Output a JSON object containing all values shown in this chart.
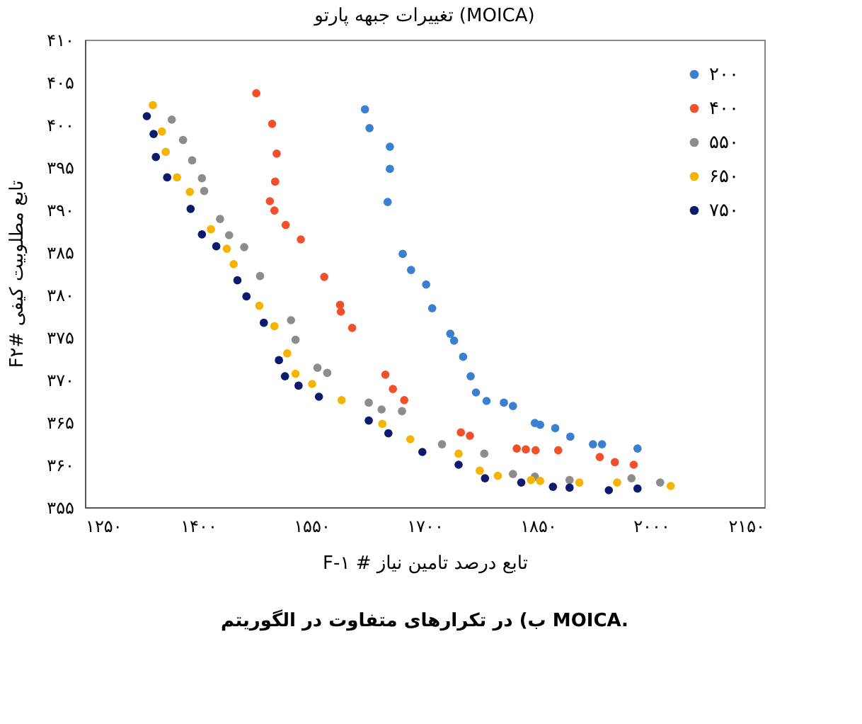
{
  "chart_data": {
    "type": "scatter",
    "title": "تغییرات جبهه پارتو (MOICA)",
    "xlabel": "F-۱ # تابع درصد تامین نیاز",
    "ylabel": "F۲# تابع مطلوبیت کیفی",
    "annotations": [
      "ب) در تکرارهای متفاوت در الگوریتم MOICA."
    ],
    "marker": "circle",
    "legend": "top right",
    "grid": false,
    "xlim": [
      1250,
      2150
    ],
    "ylim": [
      355,
      410
    ],
    "xticks": [
      {
        "value": 1250,
        "label": "۱۲۵۰"
      },
      {
        "value": 1400,
        "label": "۱۴۰۰"
      },
      {
        "value": 1550,
        "label": "۱۵۵۰"
      },
      {
        "value": 1700,
        "label": "۱۷۰۰"
      },
      {
        "value": 1850,
        "label": "۱۸۵۰"
      },
      {
        "value": 2000,
        "label": "۲۰۰۰"
      },
      {
        "value": 2150,
        "label": "۲۱۵۰"
      }
    ],
    "yticks": [
      {
        "value": 355,
        "label": "۳۵۵"
      },
      {
        "value": 360,
        "label": "۳۶۰"
      },
      {
        "value": 365,
        "label": "۳۶۵"
      },
      {
        "value": 370,
        "label": "۳۷۰"
      },
      {
        "value": 375,
        "label": "۳۷۵"
      },
      {
        "value": 380,
        "label": "۳۸۰"
      },
      {
        "value": 385,
        "label": "۳۸۵"
      },
      {
        "value": 390,
        "label": "۳۹۰"
      },
      {
        "value": 395,
        "label": "۳۹۵"
      },
      {
        "value": 400,
        "label": "۴۰۰"
      },
      {
        "value": 405,
        "label": "۴۰۵"
      },
      {
        "value": 410,
        "label": "۴۱۰"
      }
    ],
    "series": [
      {
        "name": "۲۰۰",
        "color": "#3a7fd0",
        "x": [
          1621,
          1627,
          1654,
          1654,
          1651,
          1671,
          1682,
          1702,
          1710,
          1734,
          1739,
          1751,
          1761,
          1768,
          1782,
          1805,
          1817,
          1846,
          1853,
          1873,
          1893,
          1923,
          1935,
          1982
        ],
        "values": [
          401.8,
          399.6,
          397.4,
          394.8,
          390.9,
          384.8,
          382.9,
          381.2,
          378.4,
          375.4,
          374.6,
          372.7,
          370.4,
          368.5,
          367.5,
          367.3,
          366.9,
          364.9,
          364.7,
          364.3,
          363.3,
          362.4,
          362.4,
          361.9
        ]
      },
      {
        "name": "۴۰۰",
        "color": "#f0502a",
        "x": [
          1477,
          1498,
          1504,
          1502,
          1495,
          1501,
          1516,
          1536,
          1567,
          1588,
          1589,
          1604,
          1648,
          1658,
          1673,
          1748,
          1760,
          1822,
          1834,
          1847,
          1877,
          1932,
          1952,
          1977
        ],
        "values": [
          403.7,
          400.1,
          396.6,
          393.3,
          391.0,
          389.9,
          388.2,
          386.5,
          382.1,
          378.8,
          378.0,
          376.1,
          370.6,
          368.9,
          367.6,
          363.8,
          363.4,
          361.9,
          361.8,
          361.7,
          361.7,
          360.9,
          360.3,
          360.0
        ]
      },
      {
        "name": "۵۵۰",
        "color": "#8c8c8c",
        "x": [
          1365,
          1380,
          1392,
          1405,
          1408,
          1429,
          1441,
          1461,
          1482,
          1523,
          1529,
          1558,
          1571,
          1626,
          1643,
          1670,
          1723,
          1779,
          1817,
          1846,
          1892,
          1974,
          2012
        ],
        "values": [
          400.6,
          398.2,
          395.8,
          393.7,
          392.2,
          388.9,
          387.0,
          385.6,
          382.2,
          377.0,
          374.7,
          371.4,
          370.8,
          367.3,
          366.5,
          366.3,
          362.4,
          361.3,
          358.9,
          358.6,
          358.2,
          358.4,
          357.9
        ]
      },
      {
        "name": "۶۵۰",
        "color": "#f5b400",
        "x": [
          1340,
          1352,
          1357,
          1372,
          1389,
          1417,
          1438,
          1447,
          1481,
          1501,
          1518,
          1529,
          1551,
          1590,
          1644,
          1681,
          1745,
          1773,
          1797,
          1841,
          1853,
          1905,
          1955,
          2026
        ],
        "values": [
          402.3,
          399.2,
          396.8,
          393.8,
          392.1,
          387.7,
          385.4,
          383.6,
          378.7,
          376.3,
          373.1,
          370.7,
          369.5,
          367.6,
          364.8,
          363.0,
          361.3,
          359.3,
          358.7,
          358.2,
          358.1,
          357.9,
          357.9,
          357.5
        ]
      },
      {
        "name": "۷۵۰",
        "color": "#0d1a6e",
        "x": [
          1332,
          1341,
          1344,
          1359,
          1390,
          1405,
          1424,
          1452,
          1464,
          1487,
          1507,
          1515,
          1533,
          1560,
          1626,
          1652,
          1697,
          1745,
          1780,
          1828,
          1870,
          1892,
          1944,
          1982
        ],
        "values": [
          401.0,
          398.9,
          396.2,
          393.8,
          390.1,
          387.1,
          385.7,
          381.7,
          379.8,
          376.7,
          372.3,
          370.4,
          369.3,
          368.0,
          365.2,
          363.7,
          361.5,
          360.0,
          358.4,
          357.9,
          357.4,
          357.3,
          357.0,
          357.2
        ]
      }
    ]
  }
}
